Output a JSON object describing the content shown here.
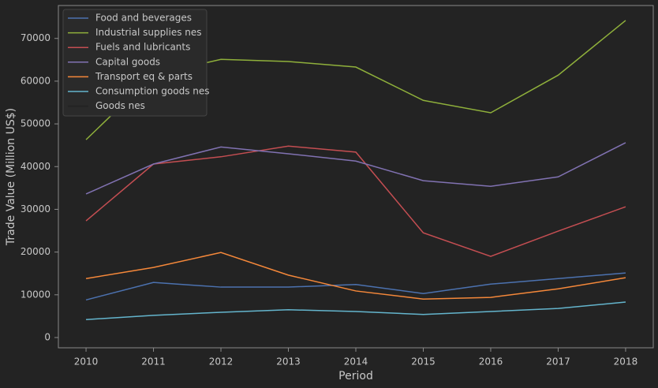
{
  "chart_data": {
    "type": "line",
    "x": [
      2010,
      2011,
      2012,
      2013,
      2014,
      2015,
      2016,
      2017,
      2018
    ],
    "xlabel": "Period",
    "ylabel": "Trade Value (Million US$)",
    "xlim": [
      2009.59,
      2018.41
    ],
    "xticks": [
      2010,
      2011,
      2012,
      2013,
      2014,
      2015,
      2016,
      2017,
      2018
    ],
    "ylim": [
      -2400,
      77700
    ],
    "yticks": [
      0,
      10000,
      20000,
      30000,
      40000,
      50000,
      60000,
      70000
    ],
    "legend": "upper left",
    "series": [
      {
        "name": "Food and beverages",
        "color": "#4c72b0",
        "values": [
          8800,
          12900,
          11800,
          11800,
          12400,
          10300,
          12500,
          13800,
          15100
        ]
      },
      {
        "name": "Industrial supplies nes",
        "color": "#8fb03b",
        "values": [
          46300,
          61500,
          65100,
          64600,
          63300,
          55500,
          52600,
          61400,
          74200
        ]
      },
      {
        "name": "Fuels and lubricants",
        "color": "#c44e52",
        "values": [
          27300,
          40600,
          42300,
          44800,
          43400,
          24500,
          19000,
          24900,
          30600
        ]
      },
      {
        "name": "Capital goods",
        "color": "#8172b2",
        "values": [
          33600,
          40600,
          44600,
          43000,
          41300,
          36700,
          35400,
          37600,
          45600
        ]
      },
      {
        "name": "Transport eq & parts",
        "color": "#f5883a",
        "values": [
          13800,
          16400,
          19900,
          14600,
          10900,
          9000,
          9400,
          11400,
          14000
        ]
      },
      {
        "name": "Consumption goods nes",
        "color": "#64b5cd",
        "values": [
          4200,
          5200,
          5900,
          6500,
          6100,
          5400,
          6100,
          6800,
          8300
        ]
      },
      {
        "name": "Goods nes",
        "color": "#222222",
        "values": [
          null,
          null,
          null,
          null,
          null,
          null,
          null,
          null,
          null
        ]
      }
    ]
  }
}
